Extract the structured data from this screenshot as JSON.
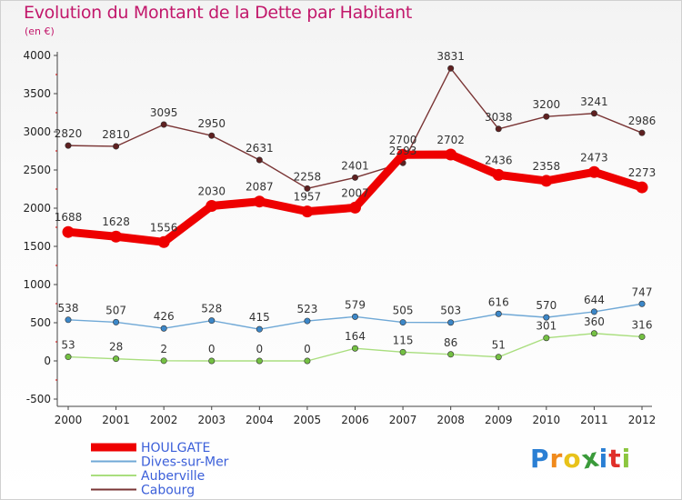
{
  "header": {
    "title": "Evolution du Montant de la Dette par Habitant",
    "subtitle": "(en €)"
  },
  "logo": {
    "text": "Proxiti",
    "letters": [
      {
        "ch": "P",
        "color": "#2a7fd4"
      },
      {
        "ch": "r",
        "color": "#f08a1c"
      },
      {
        "ch": "o",
        "color": "#e8c21a"
      },
      {
        "ch": "x",
        "color": "#3a9a3a"
      },
      {
        "ch": "i",
        "color": "#2a7fd4"
      },
      {
        "ch": "t",
        "color": "#e0302a"
      },
      {
        "ch": "i",
        "color": "#8cc63f"
      }
    ]
  },
  "chart_data": {
    "type": "line",
    "title": "Evolution du Montant de la Dette par Habitant",
    "subtitle": "(en €)",
    "xlabel": "",
    "ylabel": "",
    "ylim": [
      -500,
      4000
    ],
    "yticks": [
      -500,
      0,
      500,
      1000,
      1500,
      2000,
      2500,
      3000,
      3500,
      4000
    ],
    "grid": false,
    "legend_position": "bottom-left",
    "x": [
      "2000",
      "2001",
      "2002",
      "2003",
      "2004",
      "2005",
      "2006",
      "2007",
      "2008",
      "2009",
      "2010",
      "2011",
      "2012"
    ],
    "series": [
      {
        "name": "HOULGATE",
        "color": "#ee0000",
        "marker": "#ee0000",
        "emphasis": true,
        "values": [
          1688,
          1628,
          1556,
          2030,
          2087,
          1957,
          2007,
          2700,
          2702,
          2436,
          2358,
          2473,
          2273
        ],
        "labels": [
          "1688",
          "1628",
          "1556",
          "2030",
          "2087",
          "1957",
          "2007",
          "2700",
          "2702",
          "2436",
          "2358",
          "2473",
          "2273"
        ]
      },
      {
        "name": "Dives-sur-Mer",
        "color": "#6fa8d6",
        "marker": "#3c87c8",
        "emphasis": false,
        "values": [
          538,
          507,
          426,
          528,
          415,
          523,
          579,
          505,
          503,
          616,
          570,
          644,
          747
        ],
        "labels": [
          "538",
          "507",
          "426",
          "528",
          "415",
          "523",
          "579",
          "505",
          "503",
          "616",
          "570",
          "644",
          "747"
        ]
      },
      {
        "name": "Auberville",
        "color": "#a9de7e",
        "marker": "#74c043",
        "emphasis": false,
        "values": [
          53,
          28,
          2,
          0,
          0,
          0,
          164,
          115,
          86,
          51,
          301,
          360,
          316
        ],
        "labels": [
          "53",
          "28",
          "2",
          "0",
          "0",
          "0",
          "164",
          "115",
          "86",
          "51",
          "301",
          "360",
          "316"
        ]
      },
      {
        "name": "Cabourg",
        "color": "#7a3535",
        "marker": "#5e2020",
        "emphasis": false,
        "values": [
          2820,
          2810,
          3095,
          2950,
          2631,
          2258,
          2401,
          2593,
          3831,
          3038,
          3200,
          3241,
          2986
        ],
        "labels": [
          "2820",
          "2810",
          "3095",
          "2950",
          "2631",
          "2258",
          "2401",
          "2593",
          "3831",
          "3038",
          "3200",
          "3241",
          "2986"
        ]
      }
    ]
  }
}
